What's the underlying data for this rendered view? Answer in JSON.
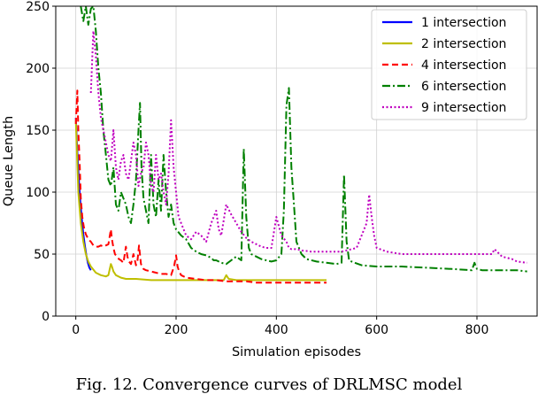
{
  "caption": "Fig. 12. Convergence curves of DRLMSC model",
  "chart_data": {
    "type": "line",
    "xlabel": "Simulation episodes",
    "ylabel": "Queue Length",
    "xlim": [
      -40,
      920
    ],
    "ylim": [
      0,
      250
    ],
    "xticks": [
      0,
      200,
      400,
      600,
      800
    ],
    "yticks": [
      0,
      50,
      100,
      150,
      200,
      250
    ],
    "grid": true,
    "legend_position": "top-right",
    "series": [
      {
        "name": "1 intersection",
        "color": "#0000ff",
        "dash": "solid",
        "x": [
          0,
          3,
          6,
          9,
          12,
          15,
          18,
          21,
          24,
          27,
          30
        ],
        "y": [
          160,
          132,
          110,
          92,
          78,
          66,
          57,
          49,
          43,
          39,
          37
        ]
      },
      {
        "name": "2 intersection",
        "color": "#bfbf00",
        "dash": "solid",
        "x": [
          0,
          5,
          10,
          15,
          20,
          25,
          30,
          40,
          50,
          60,
          65,
          70,
          72,
          75,
          80,
          90,
          100,
          120,
          150,
          200,
          250,
          295,
          300,
          305,
          320,
          350,
          400,
          450,
          500
        ],
        "y": [
          158,
          100,
          75,
          60,
          50,
          44,
          40,
          35,
          33,
          32,
          33,
          42,
          40,
          36,
          33,
          31,
          30,
          30,
          29,
          29,
          29,
          29,
          33,
          30,
          29,
          29,
          29,
          29,
          29
        ]
      },
      {
        "name": "4 intersection",
        "color": "#ff0000",
        "dash": "dashed",
        "x": [
          0,
          3,
          5,
          8,
          10,
          13,
          16,
          20,
          25,
          30,
          35,
          40,
          45,
          50,
          55,
          60,
          65,
          70,
          72,
          75,
          78,
          82,
          86,
          90,
          95,
          100,
          103,
          106,
          110,
          115,
          120,
          123,
          126,
          130,
          135,
          140,
          150,
          160,
          170,
          180,
          190,
          196,
          200,
          203,
          206,
          210,
          220,
          240,
          260,
          280,
          300,
          320,
          340,
          360,
          380,
          400,
          420,
          440,
          460,
          480,
          500
        ],
        "y": [
          155,
          182,
          150,
          120,
          95,
          80,
          72,
          66,
          62,
          60,
          57,
          56,
          56,
          57,
          56,
          57,
          58,
          70,
          62,
          55,
          50,
          48,
          46,
          45,
          43,
          56,
          48,
          44,
          42,
          50,
          41,
          45,
          57,
          42,
          38,
          37,
          36,
          35,
          34,
          34,
          33,
          40,
          49,
          40,
          36,
          33,
          31,
          30,
          29,
          29,
          28,
          28,
          28,
          27,
          27,
          27,
          27,
          27,
          27,
          27,
          27
        ]
      },
      {
        "name": "6 intersection",
        "color": "#008000",
        "dash": "dashdot",
        "x": [
          10,
          15,
          20,
          25,
          30,
          35,
          40,
          45,
          50,
          55,
          60,
          65,
          70,
          75,
          80,
          85,
          90,
          95,
          100,
          105,
          110,
          115,
          120,
          125,
          128,
          131,
          135,
          140,
          145,
          150,
          155,
          160,
          165,
          170,
          175,
          180,
          185,
          190,
          195,
          200,
          210,
          220,
          230,
          240,
          250,
          260,
          270,
          275,
          280,
          285,
          290,
          300,
          310,
          320,
          330,
          335,
          340,
          345,
          350,
          360,
          370,
          380,
          390,
          400,
          410,
          415,
          420,
          425,
          430,
          435,
          440,
          450,
          460,
          480,
          500,
          520,
          530,
          535,
          540,
          545,
          550,
          570,
          600,
          650,
          700,
          750,
          790,
          795,
          800,
          810,
          850,
          880,
          900
        ],
        "y": [
          250,
          238,
          250,
          235,
          248,
          250,
          230,
          200,
          180,
          150,
          130,
          110,
          105,
          120,
          90,
          85,
          100,
          95,
          90,
          80,
          75,
          90,
          110,
          150,
          172,
          120,
          95,
          85,
          75,
          130,
          90,
          80,
          110,
          85,
          130,
          100,
          80,
          90,
          75,
          70,
          65,
          62,
          55,
          52,
          50,
          49,
          47,
          45,
          45,
          44,
          43,
          42,
          45,
          48,
          45,
          135,
          80,
          55,
          50,
          48,
          46,
          45,
          44,
          45,
          50,
          85,
          170,
          184,
          120,
          90,
          60,
          50,
          46,
          44,
          43,
          42,
          43,
          114,
          60,
          45,
          44,
          41,
          40,
          40,
          39,
          38,
          37,
          43,
          38,
          37,
          37,
          37,
          36
        ]
      },
      {
        "name": "9 intersection",
        "color": "#bf00bf",
        "dash": "dotted",
        "x": [
          30,
          35,
          40,
          45,
          50,
          55,
          60,
          65,
          70,
          75,
          80,
          85,
          90,
          95,
          100,
          105,
          110,
          115,
          120,
          125,
          130,
          135,
          140,
          145,
          150,
          155,
          160,
          165,
          170,
          175,
          180,
          185,
          190,
          195,
          200,
          205,
          210,
          215,
          220,
          230,
          240,
          250,
          260,
          270,
          280,
          285,
          290,
          300,
          310,
          320,
          330,
          340,
          350,
          360,
          370,
          380,
          390,
          400,
          410,
          420,
          425,
          430,
          440,
          450,
          470,
          500,
          530,
          560,
          580,
          585,
          590,
          595,
          600,
          620,
          650,
          700,
          750,
          800,
          830,
          835,
          840,
          850,
          870,
          880,
          900
        ],
        "y": [
          180,
          230,
          210,
          180,
          160,
          150,
          140,
          130,
          125,
          150,
          120,
          110,
          125,
          130,
          115,
          110,
          125,
          140,
          130,
          105,
          115,
          120,
          140,
          130,
          105,
          100,
          130,
          110,
          115,
          100,
          90,
          115,
          158,
          120,
          100,
          80,
          75,
          70,
          65,
          62,
          68,
          65,
          60,
          75,
          85,
          70,
          65,
          90,
          82,
          75,
          68,
          63,
          60,
          58,
          56,
          55,
          55,
          80,
          65,
          60,
          55,
          54,
          54,
          53,
          52,
          52,
          52,
          55,
          75,
          98,
          80,
          65,
          55,
          52,
          50,
          50,
          50,
          50,
          50,
          54,
          52,
          48,
          46,
          44,
          43
        ]
      }
    ]
  }
}
